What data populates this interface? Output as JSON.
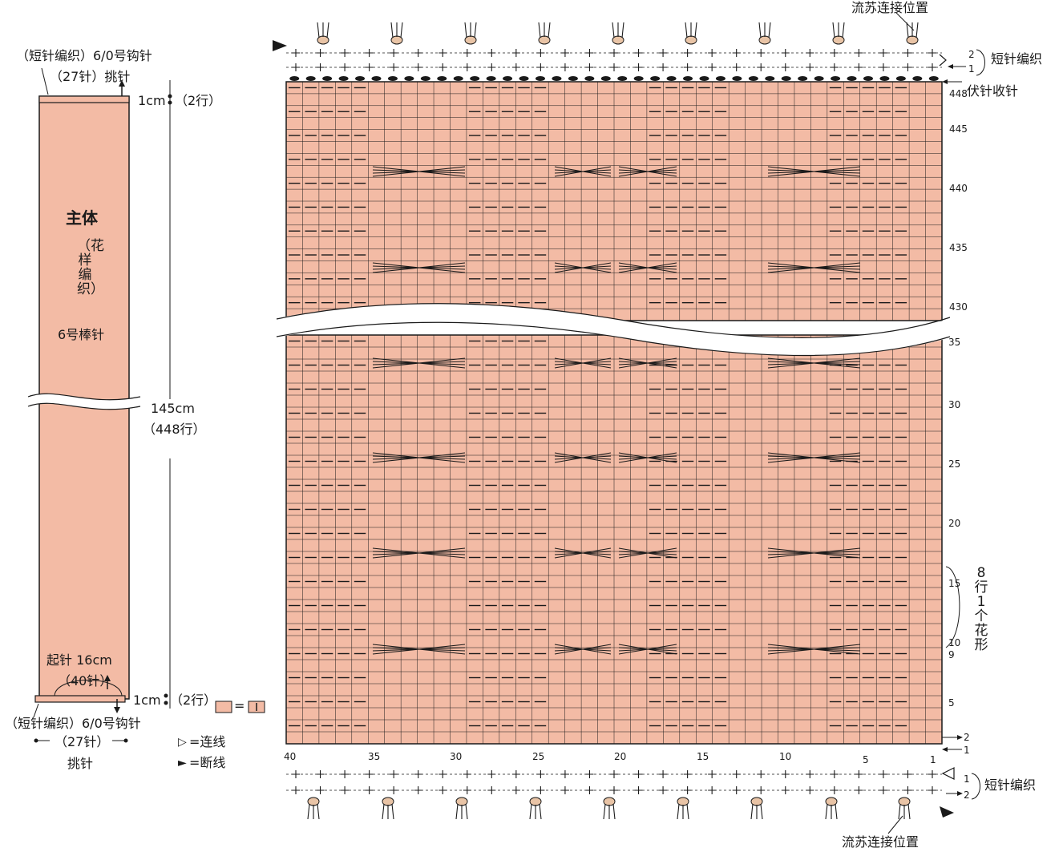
{
  "colors": {
    "knit_fill": "#f3bba5",
    "grid_line": "#1a1a1a",
    "fringe": "#e9c4a6"
  },
  "overview": {
    "top_edge_label": "（短针编织）6/0号钩针",
    "top_pickup_label": "（27针）挑针",
    "top_edge_height": "1cm",
    "top_edge_rows": "（2行）",
    "body_title": "主体",
    "body_pattern": "（花样编织）",
    "body_needle": "6号棒针",
    "length": "145cm",
    "length_rows": "（448行）",
    "cast_on": "起针 16cm",
    "cast_on_stitches": "（40针）",
    "bottom_edge_height": "1cm",
    "bottom_edge_rows": "（2行）",
    "bottom_edge_label": "（短针编织）6/0号钩针",
    "bottom_pickup_count": "（27针）",
    "bottom_pickup_label": "挑针"
  },
  "legend": {
    "equals": "=",
    "join_symbol": "▷",
    "join_label": "=连线",
    "cut_symbol": "►",
    "cut_label": "=断线"
  },
  "chart": {
    "fringe_top_label": "流苏连接位置",
    "fringe_bottom_label": "流苏连接位置",
    "sc_top_label": "短针编织",
    "sc_bottom_label": "短针编织",
    "bind_off_label": "伏针收针",
    "repeat_label": "8行1个花形",
    "row_numbers_upper": [
      "448",
      "445",
      "440",
      "435",
      "430"
    ],
    "row_numbers_lower": [
      "35",
      "30",
      "25",
      "20",
      "15",
      "10",
      "9",
      "5"
    ],
    "stitch_numbers": [
      "40",
      "35",
      "30",
      "25",
      "20",
      "15",
      "10",
      "5",
      "1"
    ],
    "edge_rows_top": [
      "2",
      "1"
    ],
    "edge_rows_bottom": [
      "1",
      "2"
    ],
    "side_rows_bottom": [
      "2",
      "1"
    ]
  }
}
